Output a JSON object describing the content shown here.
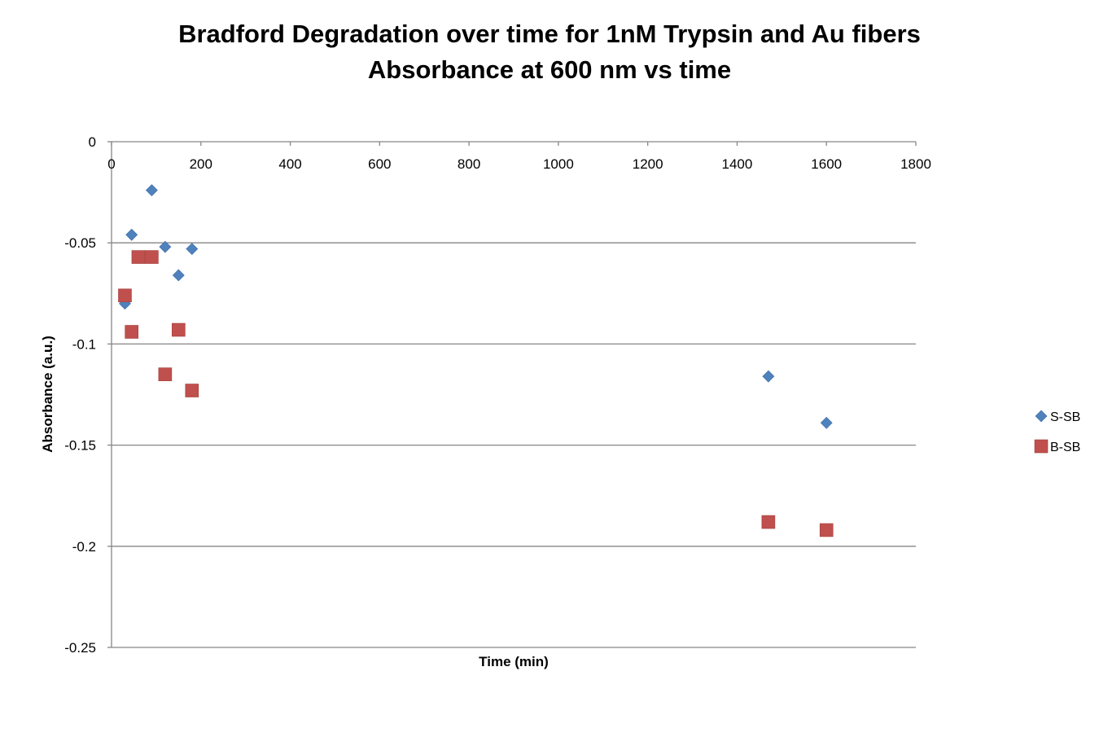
{
  "chart_data": {
    "type": "scatter",
    "title": "Bradford Degradation over time for 1nM Trypsin and Au fibers",
    "subtitle": "Absorbance at 600 nm vs time",
    "xlabel": "Time (min)",
    "ylabel": "Absorbance (a.u.)",
    "xlim": [
      0,
      1800
    ],
    "ylim": [
      -0.25,
      0
    ],
    "x_ticks": [
      "0",
      "200",
      "400",
      "600",
      "800",
      "1000",
      "1200",
      "1400",
      "1600",
      "1800"
    ],
    "y_ticks": [
      "0",
      "-0.05",
      "-0.1",
      "-0.15",
      "-0.2",
      "-0.25"
    ],
    "x_tick_values": [
      0,
      200,
      400,
      600,
      800,
      1000,
      1200,
      1400,
      1600,
      1800
    ],
    "y_tick_values": [
      0,
      -0.05,
      -0.1,
      -0.15,
      -0.2,
      -0.25
    ],
    "grid": "horizontal",
    "legend_position": "right",
    "series": [
      {
        "name": "S-SB",
        "marker": "diamond",
        "color": "#4F81BD",
        "x": [
          30,
          45,
          90,
          120,
          150,
          180,
          1470,
          1600
        ],
        "y": [
          -0.08,
          -0.046,
          -0.024,
          -0.052,
          -0.066,
          -0.053,
          -0.116,
          -0.139
        ]
      },
      {
        "name": "B-SB",
        "marker": "square",
        "color": "#C0504D",
        "x": [
          30,
          45,
          60,
          90,
          120,
          150,
          180,
          1470,
          1600
        ],
        "y": [
          -0.076,
          -0.094,
          -0.057,
          -0.057,
          -0.115,
          -0.093,
          -0.123,
          -0.188,
          -0.192
        ]
      }
    ]
  }
}
